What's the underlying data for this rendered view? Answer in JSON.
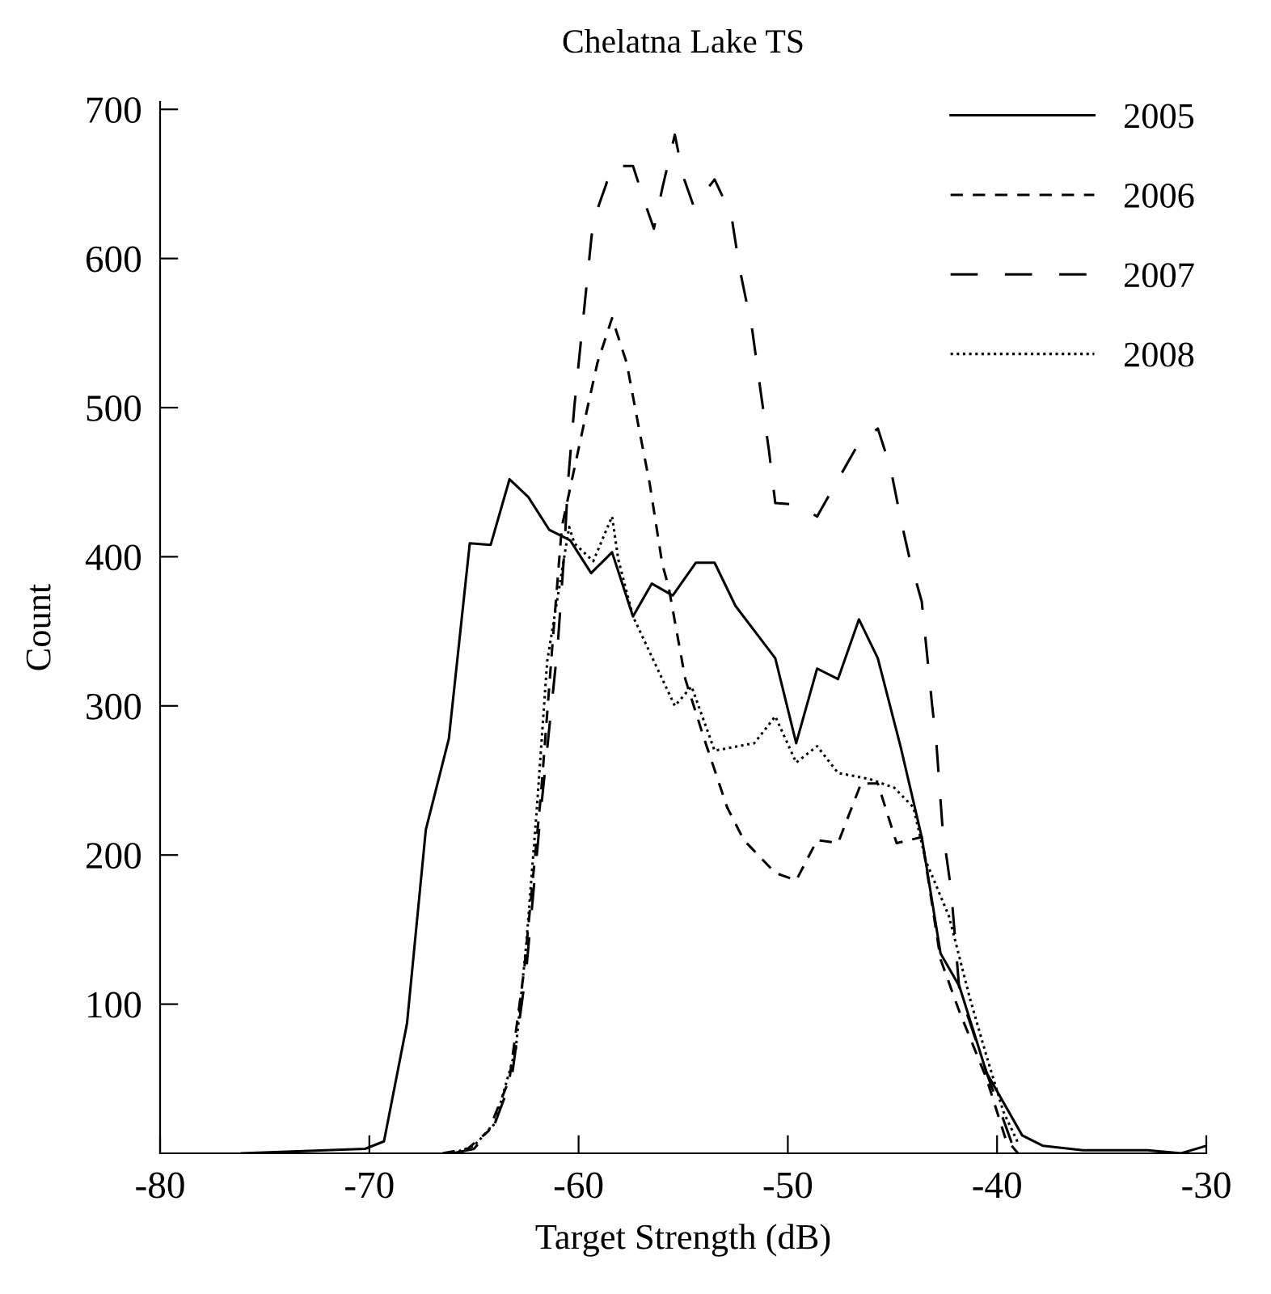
{
  "chart_data": {
    "type": "line",
    "title": "Chelatna Lake TS",
    "xlabel": "Target Strength (dB)",
    "ylabel": "Count",
    "xlim": [
      -80,
      -30
    ],
    "xticks": [
      -80,
      -70,
      -60,
      -50,
      -40,
      -30
    ],
    "ylim": [
      0,
      705
    ],
    "yticks": [
      100,
      200,
      300,
      400,
      500,
      600,
      700
    ],
    "grid": false,
    "legend": "top right",
    "marker": "none",
    "series": [
      {
        "name": "2005",
        "color": "#000000",
        "line_style": "solid",
        "x": [
          -76.1,
          -70.2,
          -69.3,
          -68.2,
          -67.3,
          -66.2,
          -65.2,
          -64.2,
          -63.3,
          -62.4,
          -61.4,
          -60.4,
          -59.4,
          -58.4,
          -57.4,
          -56.5,
          -55.5,
          -54.4,
          -53.5,
          -52.5,
          -50.6,
          -49.6,
          -48.6,
          -47.6,
          -46.6,
          -45.7,
          -44.6,
          -43.6,
          -42.7,
          -41.8,
          -40.5,
          -38.8,
          -37.8,
          -35.9,
          -32.8,
          -31.2,
          -30
        ],
        "values": [
          0,
          3,
          8,
          87,
          217,
          278,
          409,
          408,
          452,
          440,
          418,
          411,
          389,
          403,
          360,
          382,
          374,
          396,
          396,
          367,
          332,
          275,
          325,
          318,
          358,
          332,
          272,
          212,
          134,
          112,
          54,
          12,
          5,
          2,
          2,
          0,
          5
        ]
      },
      {
        "name": "2006",
        "color": "#000000",
        "line_style": "dashed",
        "x": [
          -66.5,
          -65.3,
          -64.3,
          -63.3,
          -62.6,
          -61.8,
          -61.2,
          -60.8,
          -59.7,
          -59.1,
          -58.4,
          -57.7,
          -57.1,
          -56.6,
          -56.0,
          -55.7,
          -54.9,
          -54.0,
          -52.9,
          -52.1,
          -50.6,
          -49.6,
          -48.6,
          -47.6,
          -46.5,
          -45.7,
          -44.8,
          -43.6,
          -42.7,
          -41.8,
          -40.5,
          -39.6,
          -39.0
        ],
        "values": [
          0,
          3,
          15,
          50,
          123,
          240,
          350,
          420,
          492,
          530,
          560,
          530,
          485,
          449,
          395,
          380,
          318,
          278,
          232,
          210,
          188,
          183,
          210,
          208,
          248,
          248,
          208,
          212,
          130,
          95,
          50,
          10,
          0
        ]
      },
      {
        "name": "2007",
        "color": "#000000",
        "line_style": "long dashed",
        "x": [
          -66.0,
          -65.0,
          -64.0,
          -63.2,
          -62.5,
          -61.8,
          -61.0,
          -60.7,
          -60.5,
          -60.2,
          -59.9,
          -59.4,
          -59.3,
          -58.7,
          -58.4,
          -57.4,
          -56.8,
          -56.4,
          -56.0,
          -55.4,
          -55.0,
          -54.5,
          -53.5,
          -52.7,
          -52.3,
          -51.7,
          -51.3,
          -50.9,
          -50.6,
          -49.6,
          -48.6,
          -46.7,
          -45.7,
          -45.1,
          -44.6,
          -44.2,
          -43.6,
          -43.1,
          -42.9,
          -42.6,
          -42.2,
          -41.8,
          -40.5,
          -39.2,
          -38.8
        ],
        "values": [
          0,
          3,
          20,
          50,
          123,
          230,
          340,
          400,
          451,
          501,
          543,
          612,
          625,
          649,
          662,
          662,
          636,
          620,
          647,
          683,
          655,
          635,
          653,
          629,
          593,
          552,
          511,
          471,
          436,
          435,
          427,
          474,
          486,
          460,
          425,
          400,
          370,
          300,
          275,
          217,
          177,
          109,
          54,
          3,
          0
        ]
      },
      {
        "name": "2008",
        "color": "#000000",
        "line_style": "dotted",
        "x": [
          -66.0,
          -65.0,
          -64.0,
          -63.0,
          -62.5,
          -62.0,
          -61.5,
          -60.45,
          -60.2,
          -59.3,
          -58.4,
          -58.1,
          -57.4,
          -55.4,
          -54.6,
          -53.5,
          -51.6,
          -50.6,
          -49.6,
          -48.6,
          -47.6,
          -46.1,
          -44.9,
          -44.0,
          -43.4,
          -42.3,
          -41.3,
          -40.5,
          -39.7,
          -39.0
        ],
        "values": [
          0,
          5,
          20,
          70,
          140,
          230,
          330,
          420,
          409,
          397,
          427,
          398,
          360,
          300,
          313,
          270,
          275,
          293,
          262,
          273,
          255,
          251,
          245,
          232,
          196,
          159,
          104,
          65,
          28,
          7
        ]
      }
    ]
  }
}
